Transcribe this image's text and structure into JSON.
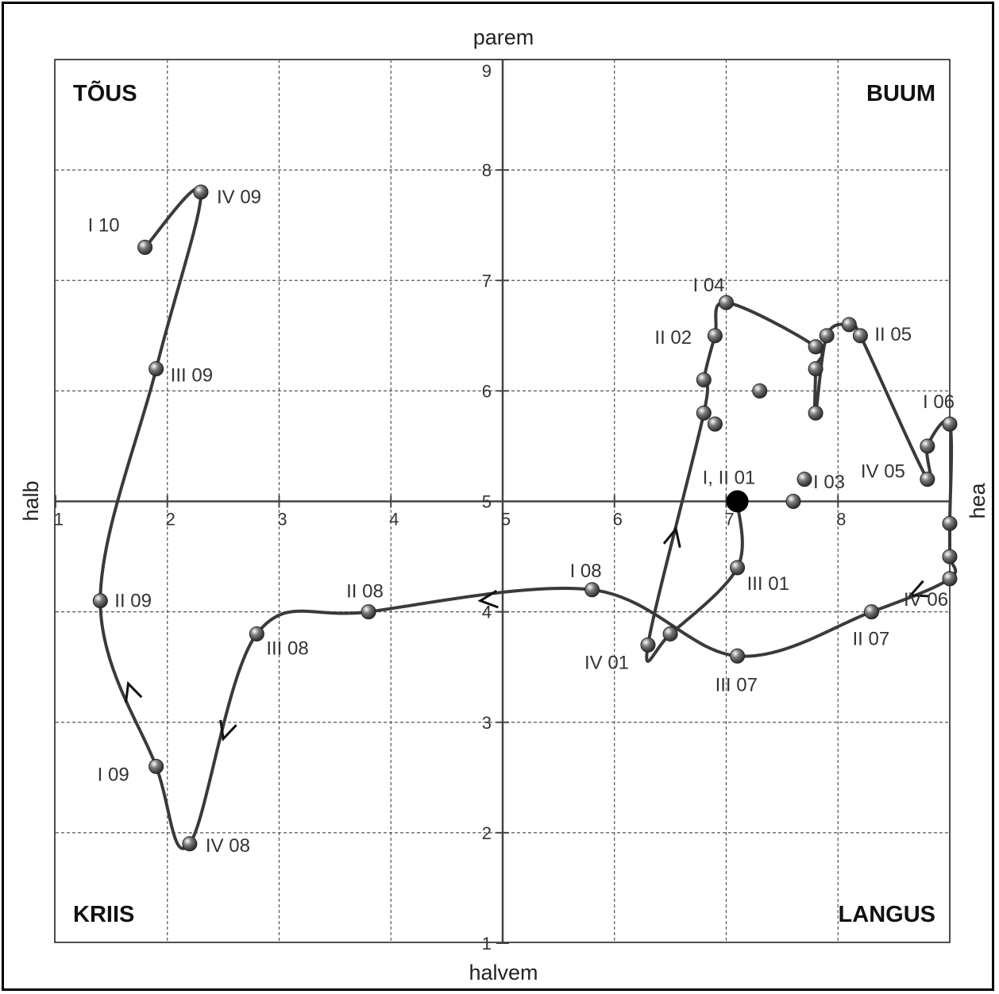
{
  "chart_data": {
    "type": "line",
    "axis_titles": {
      "top": "parem",
      "bottom": "halvem",
      "left": "halb",
      "right": "hea"
    },
    "quadrants": {
      "top_left": "TÕUS",
      "top_right": "BUUM",
      "bottom_left": "KRIIS",
      "bottom_right": "LANGUS"
    },
    "xlim": [
      1,
      9
    ],
    "ylim": [
      1,
      9
    ],
    "center": [
      5,
      5
    ],
    "x_ticks": [
      1,
      2,
      3,
      4,
      5,
      6,
      7,
      8
    ],
    "y_ticks": [
      1,
      2,
      3,
      4,
      5,
      6,
      7,
      8,
      9
    ],
    "grid": true,
    "colors": {
      "line": "#3a3a3a",
      "grid": "#555555",
      "point": "#7a7a7a",
      "current": "#000000"
    },
    "series": [
      {
        "points": [
          {
            "label": "I, II 01",
            "x": 7.1,
            "y": 5.0,
            "current": true
          },
          {
            "label": "III 01",
            "x": 7.1,
            "y": 4.4
          },
          {
            "label": "",
            "x": 6.5,
            "y": 3.8
          },
          {
            "label": "IV 01",
            "x": 6.3,
            "y": 3.7
          },
          {
            "label": "",
            "x": 6.8,
            "y": 5.8
          },
          {
            "label": "",
            "x": 6.8,
            "y": 6.1
          },
          {
            "label": "II 02",
            "x": 6.9,
            "y": 6.5
          },
          {
            "label": "I 04",
            "x": 7.0,
            "y": 6.8
          },
          {
            "label": "",
            "x": 7.8,
            "y": 6.4
          },
          {
            "label": "",
            "x": 7.8,
            "y": 6.2
          },
          {
            "label": "",
            "x": 7.8,
            "y": 5.8
          },
          {
            "label": "",
            "x": 7.9,
            "y": 6.5
          },
          {
            "label": "",
            "x": 8.1,
            "y": 6.6
          },
          {
            "label": "II 05",
            "x": 8.2,
            "y": 6.5
          },
          {
            "label": "IV 05",
            "x": 8.8,
            "y": 5.2
          },
          {
            "label": "",
            "x": 8.8,
            "y": 5.5
          },
          {
            "label": "I 06",
            "x": 9.0,
            "y": 5.7
          },
          {
            "label": "",
            "x": 9.0,
            "y": 4.8
          },
          {
            "label": "",
            "x": 9.0,
            "y": 4.5
          },
          {
            "label": "IV 06",
            "x": 9.0,
            "y": 4.3
          },
          {
            "label": "II 07",
            "x": 8.3,
            "y": 4.0
          },
          {
            "label": "III 07",
            "x": 7.1,
            "y": 3.6
          },
          {
            "label": "I 08",
            "x": 5.8,
            "y": 4.2
          },
          {
            "label": "II 08",
            "x": 3.8,
            "y": 4.0
          },
          {
            "label": "III 08",
            "x": 2.8,
            "y": 3.8
          },
          {
            "label": "IV 08",
            "x": 2.2,
            "y": 1.9
          },
          {
            "label": "I 09",
            "x": 1.9,
            "y": 2.6
          },
          {
            "label": "II 09",
            "x": 1.4,
            "y": 4.1
          },
          {
            "label": "III 09",
            "x": 1.9,
            "y": 6.2
          },
          {
            "label": "IV 09",
            "x": 2.3,
            "y": 7.8
          },
          {
            "label": "I 10",
            "x": 1.8,
            "y": 7.3
          }
        ]
      }
    ],
    "extra_labels": [
      "I 03"
    ],
    "extra_points": [
      {
        "x": 6.9,
        "y": 5.7
      },
      {
        "x": 7.3,
        "y": 6.0
      },
      {
        "x": 7.6,
        "y": 5.0
      },
      {
        "x": 7.7,
        "y": 5.2
      }
    ]
  }
}
